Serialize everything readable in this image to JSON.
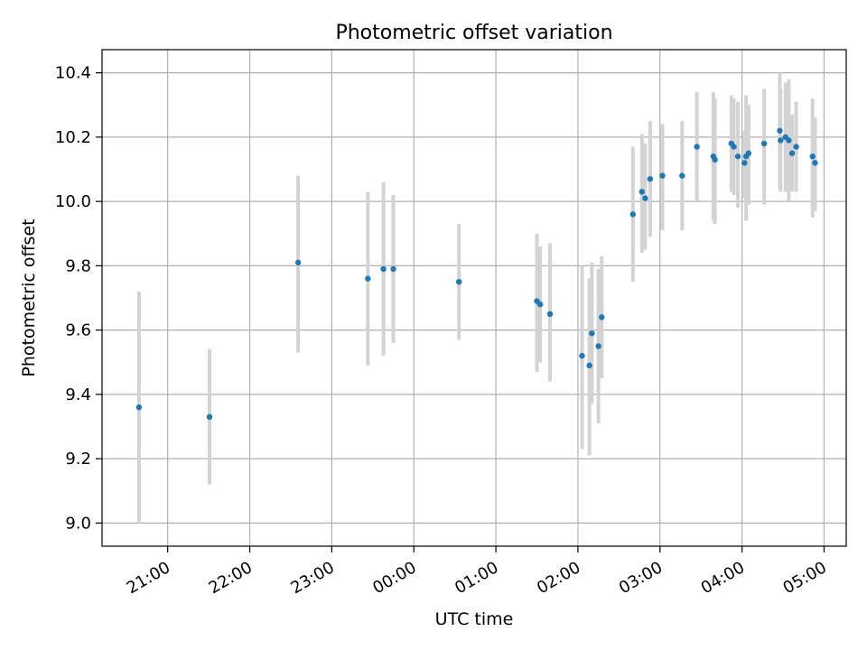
{
  "chart_data": {
    "type": "scatter",
    "title": "Photometric offset variation",
    "xlabel": "UTC time",
    "ylabel": "Photometric offset",
    "grid": true,
    "x_unit": "hours since 00:00 UTC",
    "xlim": [
      -3.8,
      5.27
    ],
    "ylim": [
      8.928,
      10.472
    ],
    "x_ticks": [
      {
        "value": -3,
        "label": "21:00"
      },
      {
        "value": -2,
        "label": "22:00"
      },
      {
        "value": -1,
        "label": "23:00"
      },
      {
        "value": 0,
        "label": "00:00"
      },
      {
        "value": 1,
        "label": "01:00"
      },
      {
        "value": 2,
        "label": "02:00"
      },
      {
        "value": 3,
        "label": "03:00"
      },
      {
        "value": 4,
        "label": "04:00"
      },
      {
        "value": 5,
        "label": "05:00"
      }
    ],
    "y_ticks": [
      {
        "value": 9.0,
        "label": "9.0"
      },
      {
        "value": 9.2,
        "label": "9.2"
      },
      {
        "value": 9.4,
        "label": "9.4"
      },
      {
        "value": 9.6,
        "label": "9.6"
      },
      {
        "value": 9.8,
        "label": "9.8"
      },
      {
        "value": 10.0,
        "label": "10.0"
      },
      {
        "value": 10.2,
        "label": "10.2"
      },
      {
        "value": 10.4,
        "label": "10.4"
      }
    ],
    "colors": {
      "point": "#1f77b4",
      "errorbar": "#d3d3d3",
      "grid": "#b0b0b0",
      "axis": "#000000"
    },
    "series": [
      {
        "name": "offset",
        "points": [
          {
            "x": -3.35,
            "y": 9.36,
            "lo": 9.0,
            "hi": 9.72
          },
          {
            "x": -2.49,
            "y": 9.33,
            "lo": 9.12,
            "hi": 9.54
          },
          {
            "x": -1.41,
            "y": 9.81,
            "lo": 9.53,
            "hi": 10.08
          },
          {
            "x": -0.56,
            "y": 9.76,
            "lo": 9.49,
            "hi": 10.03
          },
          {
            "x": -0.37,
            "y": 9.79,
            "lo": 9.52,
            "hi": 10.06
          },
          {
            "x": -0.25,
            "y": 9.79,
            "lo": 9.56,
            "hi": 10.02
          },
          {
            "x": 0.55,
            "y": 9.75,
            "lo": 9.57,
            "hi": 9.93
          },
          {
            "x": 1.5,
            "y": 9.69,
            "lo": 9.47,
            "hi": 9.9
          },
          {
            "x": 1.54,
            "y": 9.68,
            "lo": 9.5,
            "hi": 9.86
          },
          {
            "x": 1.66,
            "y": 9.65,
            "lo": 9.44,
            "hi": 9.87
          },
          {
            "x": 2.05,
            "y": 9.52,
            "lo": 9.23,
            "hi": 9.8
          },
          {
            "x": 2.14,
            "y": 9.49,
            "lo": 9.21,
            "hi": 9.76
          },
          {
            "x": 2.17,
            "y": 9.59,
            "lo": 9.37,
            "hi": 9.81
          },
          {
            "x": 2.25,
            "y": 9.55,
            "lo": 9.31,
            "hi": 9.79
          },
          {
            "x": 2.29,
            "y": 9.64,
            "lo": 9.45,
            "hi": 9.83
          },
          {
            "x": 2.67,
            "y": 9.96,
            "lo": 9.75,
            "hi": 10.17
          },
          {
            "x": 2.78,
            "y": 10.03,
            "lo": 9.84,
            "hi": 10.21
          },
          {
            "x": 2.82,
            "y": 10.01,
            "lo": 9.85,
            "hi": 10.18
          },
          {
            "x": 2.88,
            "y": 10.07,
            "lo": 9.89,
            "hi": 10.25
          },
          {
            "x": 3.03,
            "y": 10.08,
            "lo": 9.91,
            "hi": 10.24
          },
          {
            "x": 3.27,
            "y": 10.08,
            "lo": 9.91,
            "hi": 10.25
          },
          {
            "x": 3.45,
            "y": 10.17,
            "lo": 10.0,
            "hi": 10.34
          },
          {
            "x": 3.65,
            "y": 10.14,
            "lo": 9.94,
            "hi": 10.34
          },
          {
            "x": 3.67,
            "y": 10.13,
            "lo": 9.93,
            "hi": 10.32
          },
          {
            "x": 3.87,
            "y": 10.18,
            "lo": 10.03,
            "hi": 10.33
          },
          {
            "x": 3.9,
            "y": 10.17,
            "lo": 10.02,
            "hi": 10.32
          },
          {
            "x": 3.95,
            "y": 10.14,
            "lo": 9.98,
            "hi": 10.31
          },
          {
            "x": 4.03,
            "y": 10.12,
            "lo": 10.01,
            "hi": 10.22
          },
          {
            "x": 4.05,
            "y": 10.14,
            "lo": 9.94,
            "hi": 10.33
          },
          {
            "x": 4.08,
            "y": 10.15,
            "lo": 9.99,
            "hi": 10.3
          },
          {
            "x": 4.27,
            "y": 10.18,
            "lo": 9.99,
            "hi": 10.35
          },
          {
            "x": 4.46,
            "y": 10.22,
            "lo": 10.04,
            "hi": 10.4
          },
          {
            "x": 4.47,
            "y": 10.19,
            "lo": 10.03,
            "hi": 10.35
          },
          {
            "x": 4.53,
            "y": 10.2,
            "lo": 10.03,
            "hi": 10.37
          },
          {
            "x": 4.57,
            "y": 10.19,
            "lo": 10.0,
            "hi": 10.38
          },
          {
            "x": 4.61,
            "y": 10.15,
            "lo": 10.03,
            "hi": 10.27
          },
          {
            "x": 4.66,
            "y": 10.17,
            "lo": 10.03,
            "hi": 10.31
          },
          {
            "x": 4.86,
            "y": 10.14,
            "lo": 9.95,
            "hi": 10.32
          },
          {
            "x": 4.89,
            "y": 10.12,
            "lo": 9.97,
            "hi": 10.26
          }
        ]
      }
    ]
  }
}
